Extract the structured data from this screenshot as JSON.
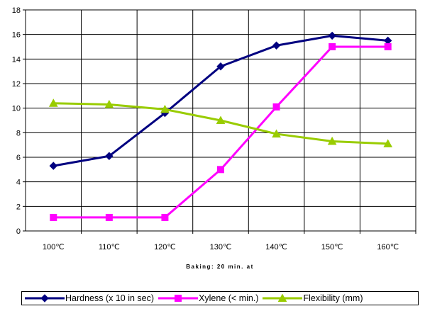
{
  "chart_data": {
    "type": "line",
    "categories": [
      "100℃",
      "110℃",
      "120℃",
      "130℃",
      "140℃",
      "150℃",
      "160℃"
    ],
    "xlabel": "Baking: 20 min. at",
    "ylabel": "",
    "ylim": [
      0,
      18
    ],
    "yticks": [
      0,
      2,
      4,
      6,
      8,
      10,
      12,
      14,
      16,
      18
    ],
    "grid": true,
    "legend_position": "bottom",
    "series": [
      {
        "name": "Hardness (x 10 in sec)",
        "color": "#000080",
        "marker": "diamond",
        "values": [
          5.3,
          6.1,
          9.6,
          13.4,
          15.1,
          15.9,
          15.5
        ]
      },
      {
        "name": "Xylene (< min.)",
        "color": "#FF00FF",
        "marker": "square",
        "values": [
          1.1,
          1.1,
          1.1,
          5.0,
          10.1,
          15.0,
          15.0
        ]
      },
      {
        "name": "Flexibility  (mm)",
        "color": "#99CC00",
        "marker": "triangle",
        "values": [
          10.4,
          10.3,
          9.9,
          9.0,
          7.9,
          7.3,
          7.1
        ]
      }
    ]
  }
}
